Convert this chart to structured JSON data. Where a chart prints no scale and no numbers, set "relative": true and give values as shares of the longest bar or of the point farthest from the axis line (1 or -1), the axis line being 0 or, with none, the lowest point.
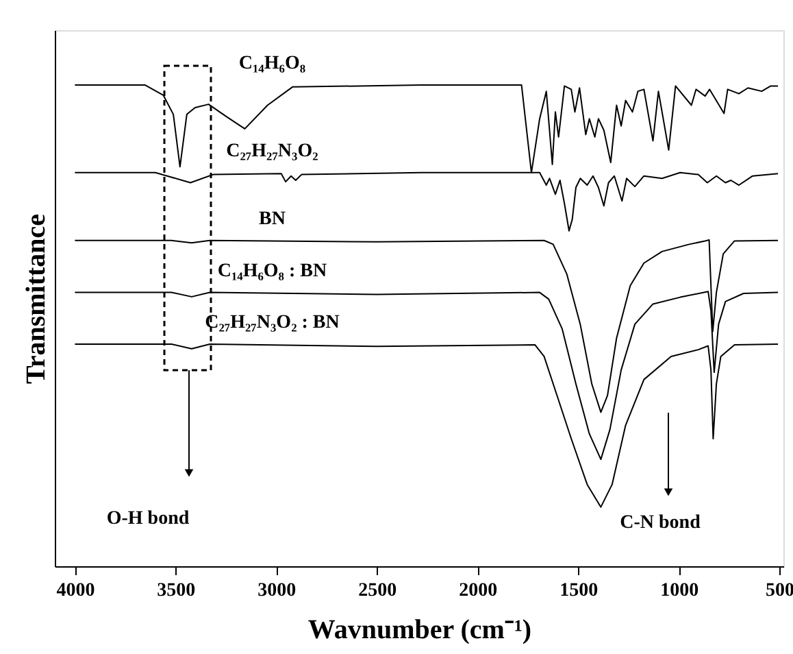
{
  "chart_data": {
    "type": "line",
    "relative": true,
    "xlabel": "Wavnumber (cm⁻¹)",
    "ylabel": "Transmittance",
    "legend": false,
    "grid": false,
    "tick_labels": "x",
    "marker": "none",
    "line_style": "solid",
    "xlim": [
      4100,
      480
    ],
    "xticks": [
      4000,
      3500,
      3000,
      2500,
      2000,
      1500,
      1000,
      500
    ],
    "series": [
      {
        "name": "C₁₄H₆O₈",
        "color": "#000000",
        "x": [
          4000,
          3651,
          3561,
          3511,
          3478,
          3444,
          3403,
          3336,
          3246,
          3156,
          3043,
          2919,
          2277,
          1781,
          1732,
          1691,
          1658,
          1628,
          1613,
          1597,
          1568,
          1534,
          1516,
          1493,
          1462,
          1444,
          1417,
          1399,
          1372,
          1338,
          1309,
          1286,
          1264,
          1230,
          1203,
          1173,
          1128,
          1101,
          1050,
          1016,
          937,
          914,
          869,
          847,
          775,
          757,
          701,
          656,
          588,
          543,
          507
        ],
        "values": [
          1.0,
          1.0,
          0.979,
          0.939,
          0.83,
          0.939,
          0.953,
          0.96,
          0.934,
          0.909,
          0.958,
          0.996,
          1.0,
          1.0,
          0.818,
          0.93,
          0.987,
          0.835,
          0.944,
          0.892,
          0.998,
          0.991,
          0.944,
          0.994,
          0.897,
          0.93,
          0.892,
          0.93,
          0.906,
          0.839,
          0.958,
          0.915,
          0.968,
          0.944,
          0.987,
          0.991,
          0.884,
          0.987,
          0.865,
          0.998,
          0.958,
          0.991,
          0.977,
          0.991,
          0.941,
          0.991,
          0.982,
          0.994,
          0.987,
          0.998,
          0.998
        ]
      },
      {
        "name": "C₂₇H₂₇N₃O₂",
        "color": "#000000",
        "x": [
          4000,
          3600,
          3426,
          3313,
          2975,
          2953,
          2926,
          2903,
          2874,
          2277,
          1691,
          1658,
          1642,
          1613,
          1590,
          1568,
          1545,
          1529,
          1511,
          1489,
          1455,
          1426,
          1399,
          1372,
          1349,
          1320,
          1282,
          1259,
          1218,
          1173,
          1083,
          993,
          903,
          858,
          813,
          768,
          741,
          701,
          633,
          507
        ],
        "values": [
          0.818,
          0.818,
          0.797,
          0.814,
          0.816,
          0.799,
          0.811,
          0.802,
          0.814,
          0.818,
          0.818,
          0.792,
          0.806,
          0.773,
          0.802,
          0.754,
          0.697,
          0.721,
          0.787,
          0.806,
          0.792,
          0.811,
          0.787,
          0.749,
          0.797,
          0.811,
          0.759,
          0.806,
          0.789,
          0.811,
          0.806,
          0.818,
          0.814,
          0.797,
          0.811,
          0.797,
          0.802,
          0.792,
          0.811,
          0.816
        ]
      },
      {
        "name": "BN",
        "color": "#000000",
        "x": [
          4000,
          3520,
          3420,
          3330,
          2500,
          1669,
          1624,
          1556,
          1489,
          1432,
          1387,
          1354,
          1309,
          1241,
          1173,
          1083,
          948,
          869,
          849,
          831,
          813,
          779,
          723,
          507
        ],
        "values": [
          0.677,
          0.677,
          0.672,
          0.677,
          0.674,
          0.677,
          0.669,
          0.607,
          0.502,
          0.379,
          0.32,
          0.355,
          0.474,
          0.583,
          0.63,
          0.654,
          0.669,
          0.676,
          0.678,
          0.488,
          0.569,
          0.649,
          0.676,
          0.677
        ]
      },
      {
        "name": "C₁₄H₆O₈ : BN",
        "color": "#000000",
        "x": [
          4000,
          3520,
          3420,
          3330,
          2500,
          1691,
          1646,
          1579,
          1511,
          1444,
          1387,
          1342,
          1286,
          1218,
          1128,
          993,
          854,
          840,
          824,
          802,
          768,
          678,
          507
        ],
        "values": [
          0.569,
          0.569,
          0.56,
          0.569,
          0.565,
          0.569,
          0.555,
          0.493,
          0.379,
          0.275,
          0.222,
          0.284,
          0.408,
          0.503,
          0.545,
          0.559,
          0.571,
          0.531,
          0.403,
          0.503,
          0.55,
          0.567,
          0.569
        ]
      },
      {
        "name": "C₂₇H₂₇N₃O₂ : BN",
        "color": "#000000",
        "x": [
          4000,
          3520,
          3420,
          3330,
          2500,
          1714,
          1669,
          1601,
          1534,
          1455,
          1387,
          1331,
          1264,
          1173,
          1038,
          903,
          854,
          840,
          829,
          813,
          791,
          723,
          507
        ],
        "values": [
          0.4615,
          0.4615,
          0.452,
          0.4615,
          0.457,
          0.46,
          0.436,
          0.35,
          0.265,
          0.17,
          0.123,
          0.17,
          0.293,
          0.388,
          0.436,
          0.45,
          0.458,
          0.408,
          0.265,
          0.379,
          0.436,
          0.46,
          0.4615
        ]
      }
    ],
    "annotations": [
      "O-H bond",
      "C-N bond"
    ]
  }
}
